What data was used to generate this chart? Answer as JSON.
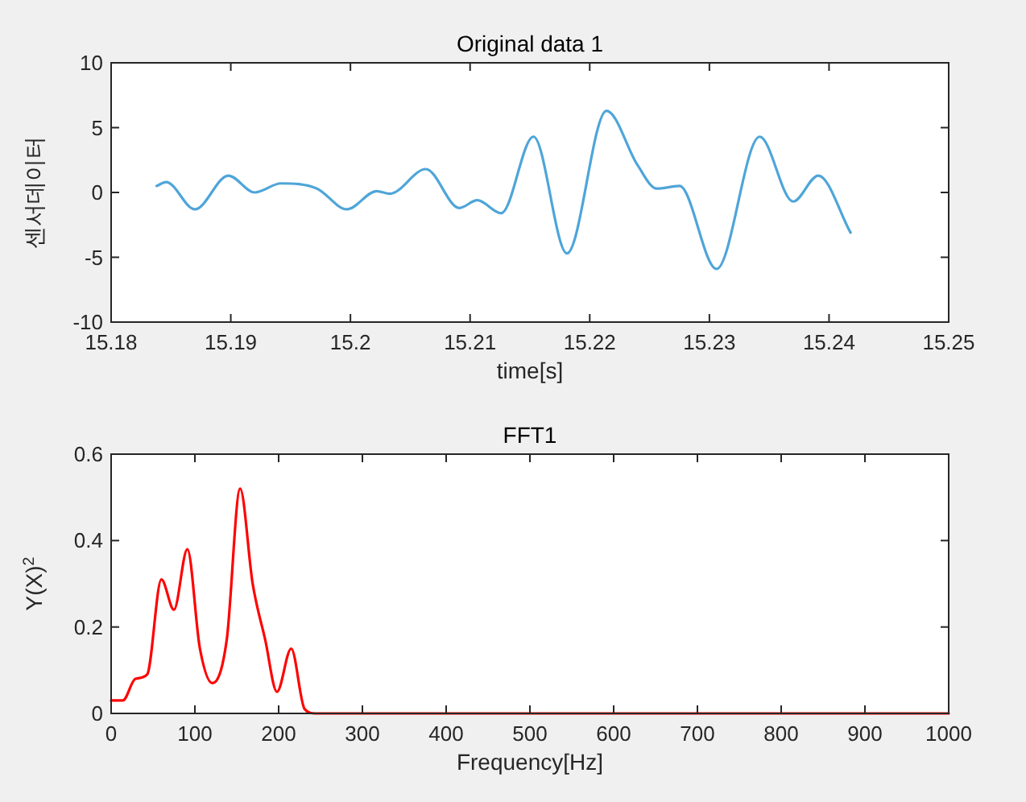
{
  "chart_data": [
    {
      "type": "line",
      "title": "Original data 1",
      "xlabel": "time[s]",
      "ylabel": "센서데이터",
      "color": "#4ea5d9",
      "x": [
        15.1838,
        15.1846,
        15.187,
        15.1898,
        15.192,
        15.1942,
        15.1972,
        15.1997,
        15.2022,
        15.2033,
        15.2063,
        15.2091,
        15.2106,
        15.2126,
        15.2153,
        15.2181,
        15.2214,
        15.224,
        15.2256,
        15.2275,
        15.2306,
        15.2342,
        15.237,
        15.2391,
        15.2418
      ],
      "values": [
        0.5,
        0.8,
        -1.3,
        1.3,
        0,
        0.7,
        0.3,
        -1.3,
        0.1,
        -0.1,
        1.8,
        -1.2,
        -0.6,
        -1.6,
        4.3,
        -4.7,
        6.3,
        2.1,
        0.3,
        0.5,
        -5.9,
        4.3,
        -0.7,
        1.3,
        -3.1
      ],
      "xlim": [
        15.18,
        15.25
      ],
      "ylim": [
        -10,
        10
      ],
      "xticks": [
        15.18,
        15.19,
        15.2,
        15.21,
        15.22,
        15.23,
        15.24,
        15.25
      ],
      "yticks": [
        -10,
        -5,
        0,
        5,
        10
      ]
    },
    {
      "type": "line",
      "title": "FFT1",
      "xlabel": "Frequency[Hz]",
      "ylabel": "Y(X)$^{2}$",
      "color": "#ff0000",
      "x": [
        0,
        14,
        29,
        43,
        60,
        75,
        91,
        106,
        121,
        138,
        154,
        169,
        184,
        198,
        215,
        231,
        244,
        1000
      ],
      "values": [
        0.03,
        0.03,
        0.08,
        0.09,
        0.31,
        0.24,
        0.38,
        0.15,
        0.07,
        0.17,
        0.52,
        0.3,
        0.17,
        0.05,
        0.15,
        0.01,
        0,
        0
      ],
      "xlim": [
        0,
        1000
      ],
      "ylim": [
        0,
        0.6
      ],
      "xticks": [
        0,
        100,
        200,
        300,
        400,
        500,
        600,
        700,
        800,
        900,
        1000
      ],
      "yticks": [
        0,
        0.2,
        0.4,
        0.6
      ]
    }
  ]
}
